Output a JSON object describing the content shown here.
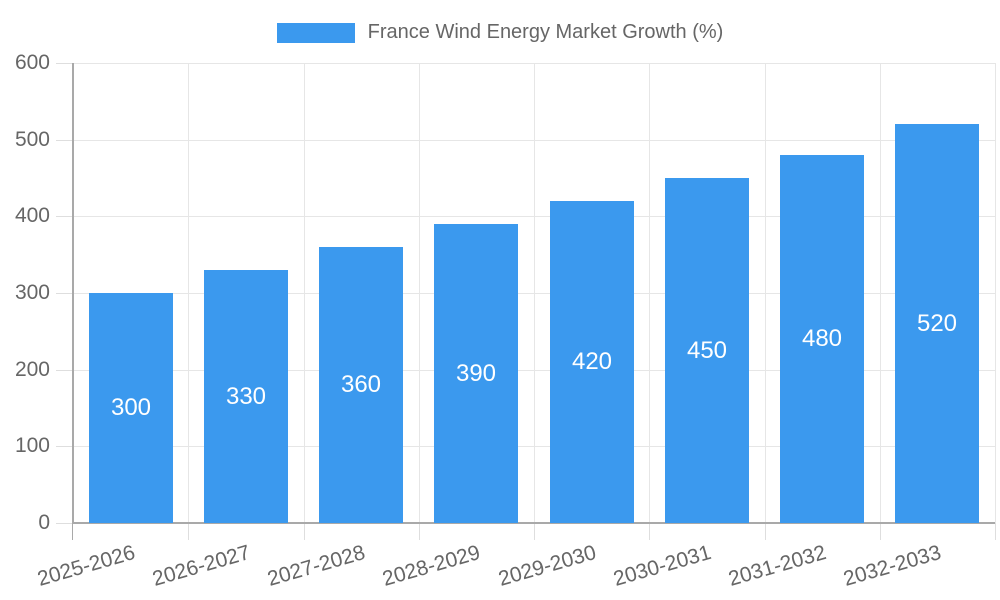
{
  "chart_data": {
    "type": "bar",
    "title": "France Wind Energy Market Growth (%)",
    "categories": [
      "2025-2026",
      "2026-2027",
      "2027-2028",
      "2028-2029",
      "2029-2030",
      "2030-2031",
      "2031-2032",
      "2032-2033"
    ],
    "values": [
      300,
      330,
      360,
      390,
      420,
      450,
      480,
      520
    ],
    "value_labels": [
      "300",
      "330",
      "360",
      "390",
      "420",
      "450",
      "480",
      "520"
    ],
    "xlabel": "",
    "ylabel": "",
    "ylim": [
      0,
      600
    ],
    "yticks": [
      0,
      100,
      200,
      300,
      400,
      500,
      600
    ],
    "grid": true,
    "legend_position": "top",
    "x_label_rotation_deg": -16,
    "colors": {
      "bar": "#3B99EE",
      "value_label": "#FFFFFF",
      "axis_text": "#666666",
      "grid": "#E6E6E6",
      "tick": "#DEDEDE",
      "axis_line": "#A9A9A9",
      "background": "#FFFFFF"
    }
  }
}
